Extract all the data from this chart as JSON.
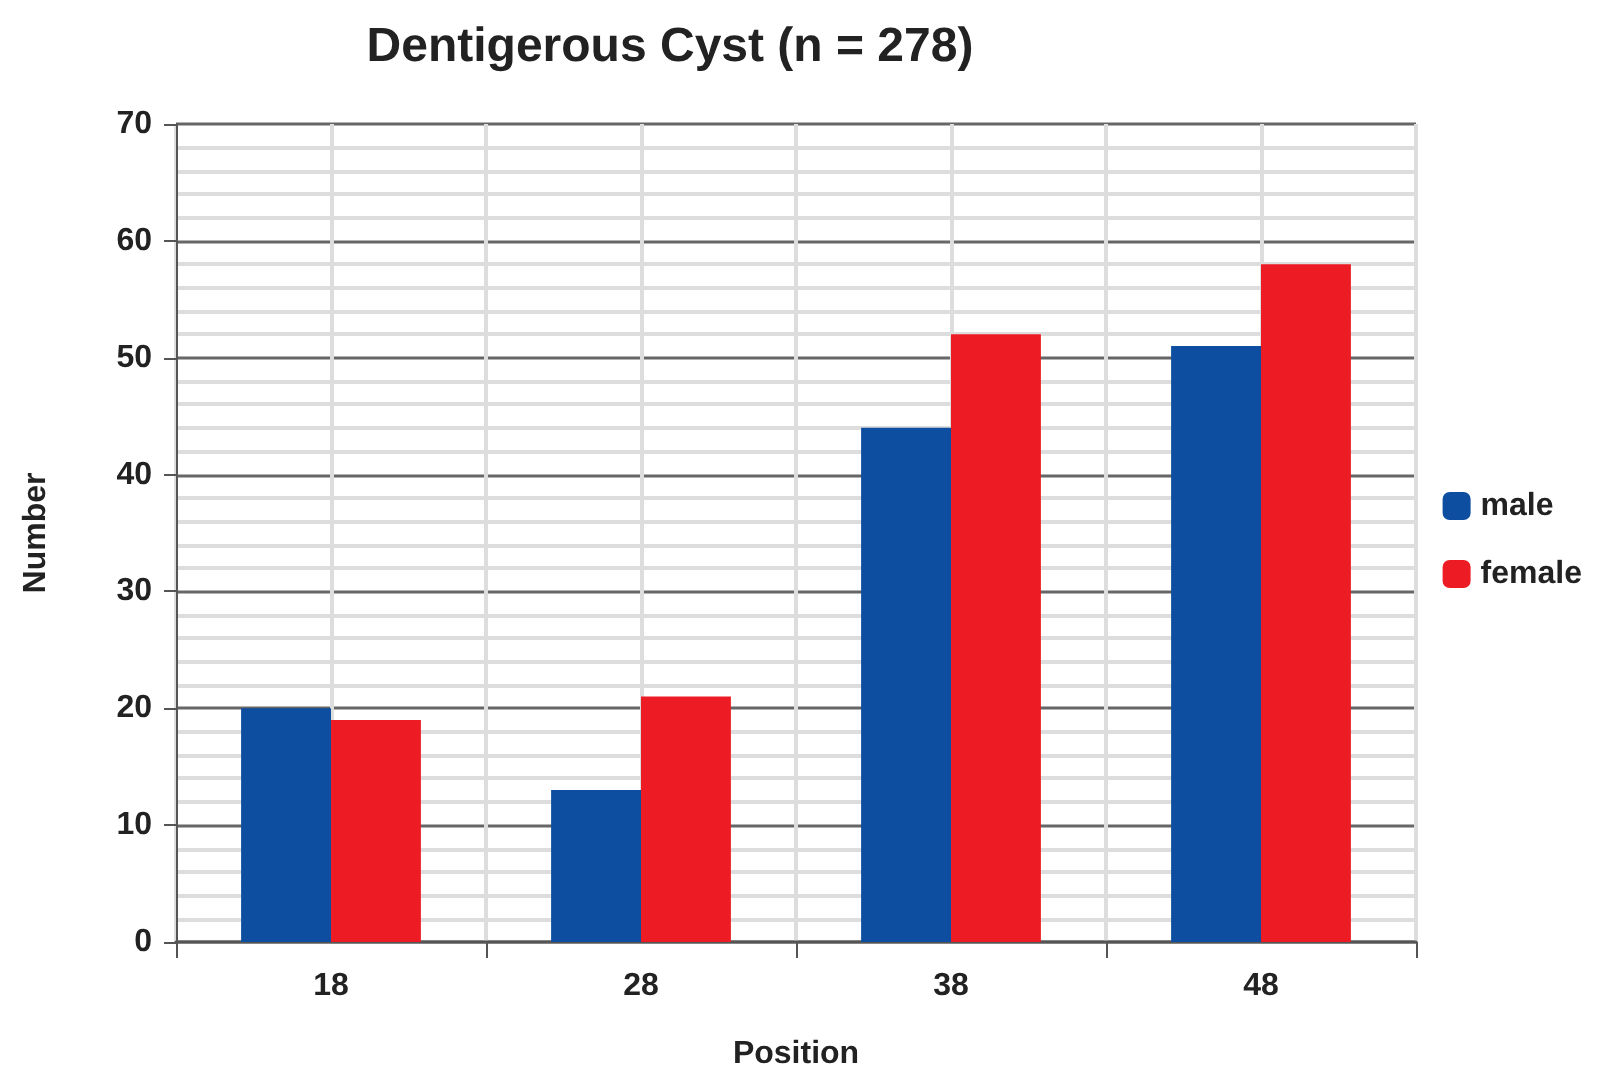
{
  "chart_data": {
    "type": "bar",
    "title": "Dentigerous Cyst (n = 278)",
    "xlabel": "Position",
    "ylabel": "Number",
    "categories": [
      "18",
      "28",
      "38",
      "48"
    ],
    "series": [
      {
        "name": "male",
        "color": "#0d4ea1",
        "values": [
          20,
          13,
          44,
          51
        ]
      },
      {
        "name": "female",
        "color": "#ed1c24",
        "values": [
          19,
          21,
          52,
          58
        ]
      }
    ],
    "ylim": [
      0,
      70
    ],
    "yticks": [
      0,
      10,
      20,
      30,
      40,
      50,
      60,
      70
    ],
    "grid": true,
    "legend": "right"
  }
}
